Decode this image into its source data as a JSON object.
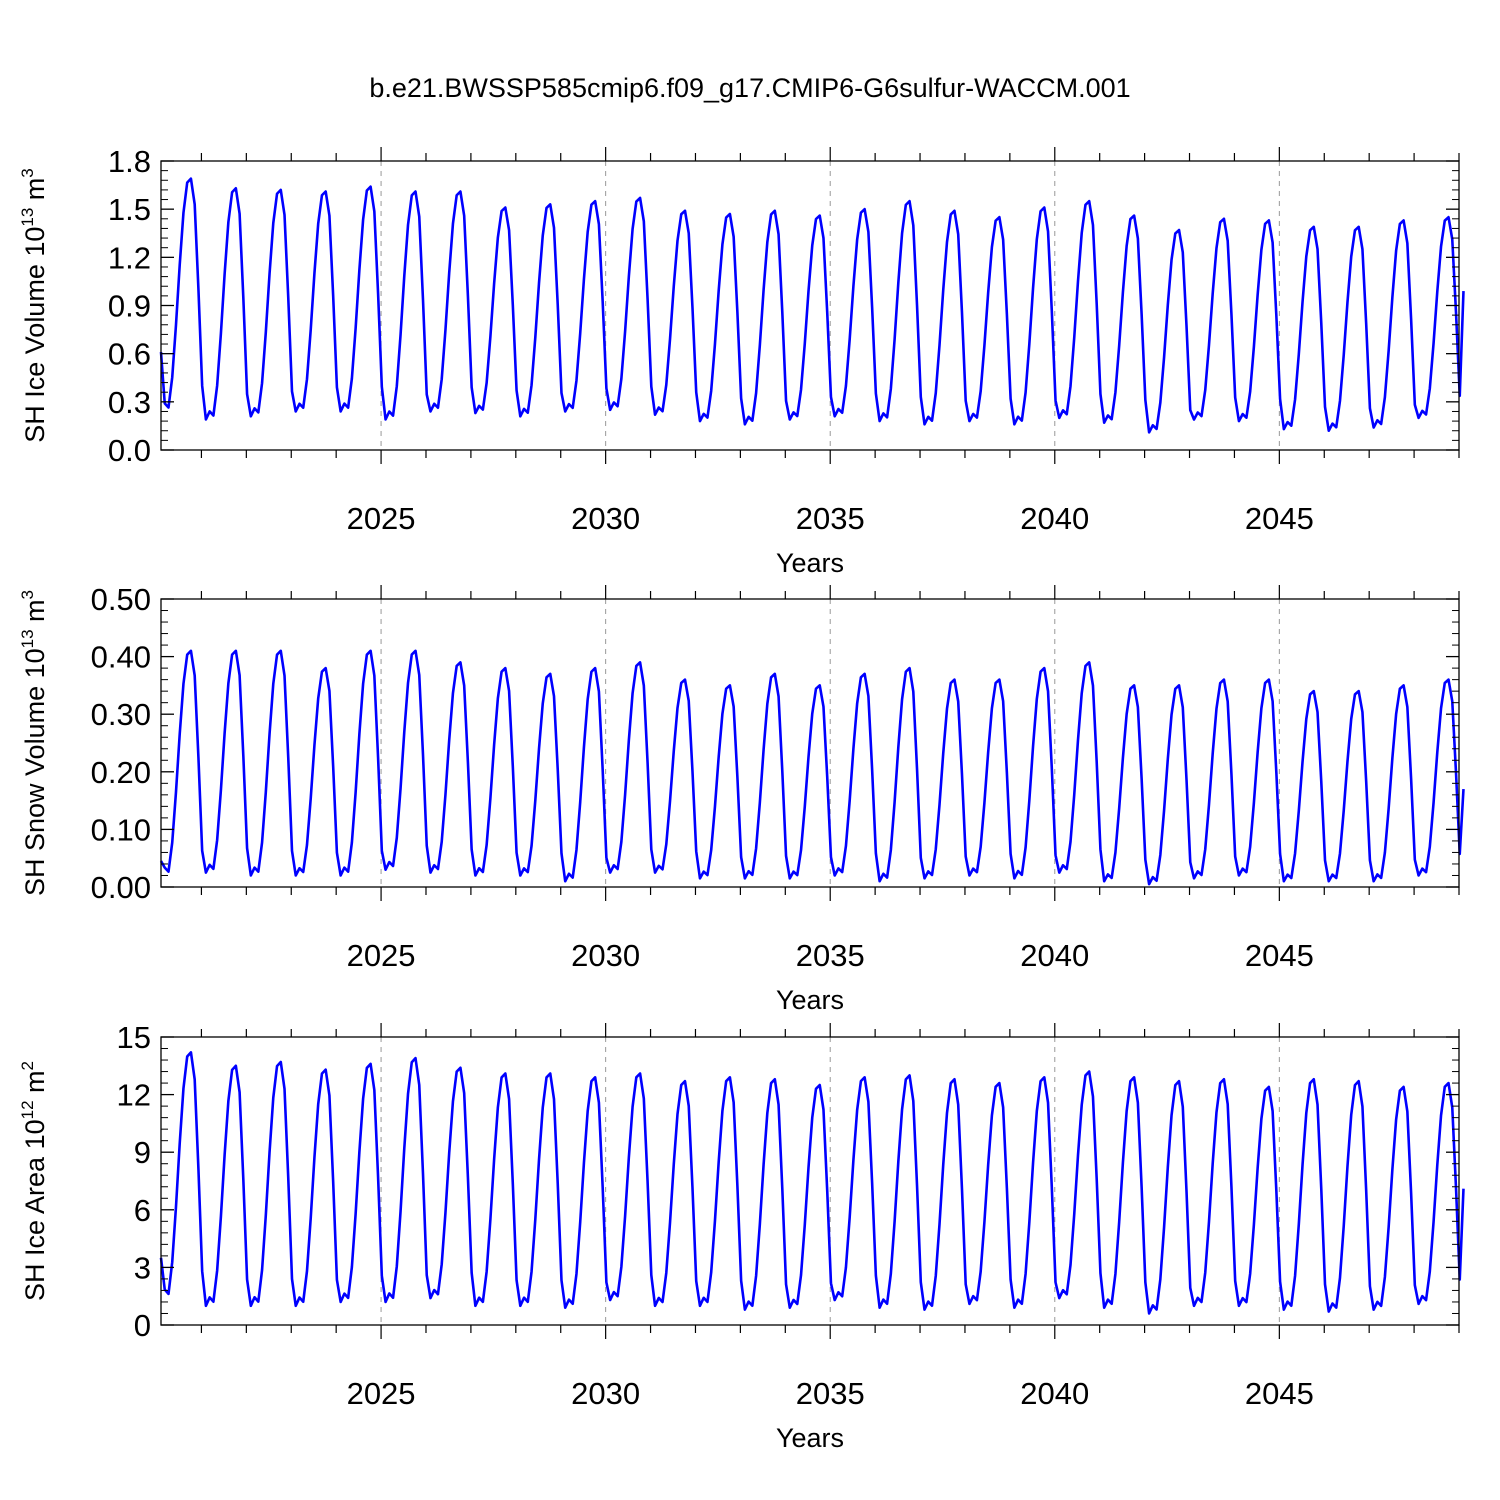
{
  "title": "b.e21.BWSSP585cmip6.f09_g17.CMIP6-G6sulfur-WACCM.001",
  "colors": {
    "line": "#0000ff",
    "axis": "#000000",
    "refline": "#999999"
  },
  "chart_data": [
    {
      "type": "line",
      "ylabel": {
        "main": "SH Ice Volume 10",
        "exp": "13",
        "unit": " m",
        "unitexp": "3"
      },
      "xlabel": "Years",
      "xlim": [
        2020.1,
        2049.0
      ],
      "ylim": [
        0.0,
        1.8
      ],
      "x_ticks": [
        "2025",
        "2030",
        "2035",
        "2040",
        "2045"
      ],
      "x_tick_values": [
        2025,
        2030,
        2035,
        2040,
        2045
      ],
      "y_ticks": [
        "0.0",
        "0.3",
        "0.6",
        "0.9",
        "1.2",
        "1.5",
        "1.8"
      ],
      "y_tick_values": [
        0.0,
        0.3,
        0.6,
        0.9,
        1.2,
        1.5,
        1.8
      ],
      "reference_lines_x": [
        2025,
        2030,
        2035,
        2040,
        2045
      ],
      "series": [
        {
          "name": "SH Ice Volume",
          "start": 2020.1,
          "step": 0.0833333,
          "annual_max": [
            1.69,
            1.63,
            1.62,
            1.61,
            1.64,
            1.61,
            1.61,
            1.51,
            1.53,
            1.55,
            1.57,
            1.49,
            1.47,
            1.49,
            1.46,
            1.5,
            1.55,
            1.49,
            1.45,
            1.51,
            1.55,
            1.46,
            1.37,
            1.44,
            1.43,
            1.39,
            1.39,
            1.43,
            1.45
          ],
          "annual_min": [
            0.24,
            0.19,
            0.21,
            0.24,
            0.24,
            0.19,
            0.24,
            0.23,
            0.21,
            0.24,
            0.25,
            0.22,
            0.18,
            0.16,
            0.19,
            0.21,
            0.18,
            0.16,
            0.18,
            0.16,
            0.2,
            0.17,
            0.11,
            0.19,
            0.18,
            0.13,
            0.12,
            0.14,
            0.2
          ],
          "first_value": 0.61,
          "last_value": 0.99
        }
      ]
    },
    {
      "type": "line",
      "ylabel": {
        "main": "SH Snow Volume 10",
        "exp": "13",
        "unit": " m",
        "unitexp": "3"
      },
      "xlabel": "Years",
      "xlim": [
        2020.1,
        2049.0
      ],
      "ylim": [
        0.0,
        0.5
      ],
      "x_ticks": [
        "2025",
        "2030",
        "2035",
        "2040",
        "2045"
      ],
      "x_tick_values": [
        2025,
        2030,
        2035,
        2040,
        2045
      ],
      "y_ticks": [
        "0.00",
        "0.10",
        "0.20",
        "0.30",
        "0.40",
        "0.50"
      ],
      "y_tick_values": [
        0.0,
        0.1,
        0.2,
        0.3,
        0.4,
        0.5
      ],
      "reference_lines_x": [
        2025,
        2030,
        2035,
        2040,
        2045
      ],
      "series": [
        {
          "name": "SH Snow Volume",
          "start": 2020.1,
          "step": 0.0833333,
          "annual_max": [
            0.41,
            0.41,
            0.41,
            0.38,
            0.41,
            0.41,
            0.39,
            0.38,
            0.37,
            0.38,
            0.39,
            0.36,
            0.35,
            0.37,
            0.35,
            0.37,
            0.38,
            0.36,
            0.36,
            0.38,
            0.39,
            0.35,
            0.35,
            0.36,
            0.36,
            0.34,
            0.34,
            0.35,
            0.36
          ],
          "annual_min": [
            0.02,
            0.025,
            0.02,
            0.02,
            0.02,
            0.03,
            0.025,
            0.02,
            0.02,
            0.01,
            0.025,
            0.025,
            0.015,
            0.015,
            0.015,
            0.02,
            0.01,
            0.015,
            0.02,
            0.015,
            0.025,
            0.01,
            0.005,
            0.015,
            0.02,
            0.01,
            0.01,
            0.01,
            0.02
          ],
          "first_value": 0.045,
          "last_value": 0.17
        }
      ]
    },
    {
      "type": "line",
      "ylabel": {
        "main": "SH Ice Area 10",
        "exp": "12",
        "unit": " m",
        "unitexp": "2"
      },
      "xlabel": "Years",
      "xlim": [
        2020.1,
        2049.0
      ],
      "ylim": [
        0,
        15
      ],
      "x_ticks": [
        "2025",
        "2030",
        "2035",
        "2040",
        "2045"
      ],
      "x_tick_values": [
        2025,
        2030,
        2035,
        2040,
        2045
      ],
      "y_ticks": [
        "0",
        "3",
        "6",
        "9",
        "12",
        "15"
      ],
      "y_tick_values": [
        0,
        3,
        6,
        9,
        12,
        15
      ],
      "reference_lines_x": [
        2025,
        2030,
        2035,
        2040,
        2045
      ],
      "series": [
        {
          "name": "SH Ice Area",
          "start": 2020.1,
          "step": 0.0833333,
          "annual_max": [
            14.2,
            13.5,
            13.7,
            13.3,
            13.6,
            13.9,
            13.4,
            13.1,
            13.1,
            12.9,
            13.1,
            12.7,
            12.9,
            12.8,
            12.5,
            12.9,
            13.0,
            12.8,
            12.6,
            12.9,
            13.2,
            12.9,
            12.7,
            12.8,
            12.4,
            12.8,
            12.7,
            12.4,
            12.6
          ],
          "annual_min": [
            1.4,
            1.0,
            1.0,
            1.0,
            1.2,
            1.2,
            1.4,
            1.0,
            1.0,
            0.9,
            1.3,
            1.0,
            1.0,
            0.8,
            0.9,
            1.3,
            0.9,
            0.8,
            1.1,
            0.9,
            1.4,
            0.9,
            0.6,
            1.0,
            1.0,
            0.8,
            0.7,
            0.8,
            1.1
          ],
          "first_value": 3.5,
          "last_value": 7.1
        }
      ]
    }
  ]
}
